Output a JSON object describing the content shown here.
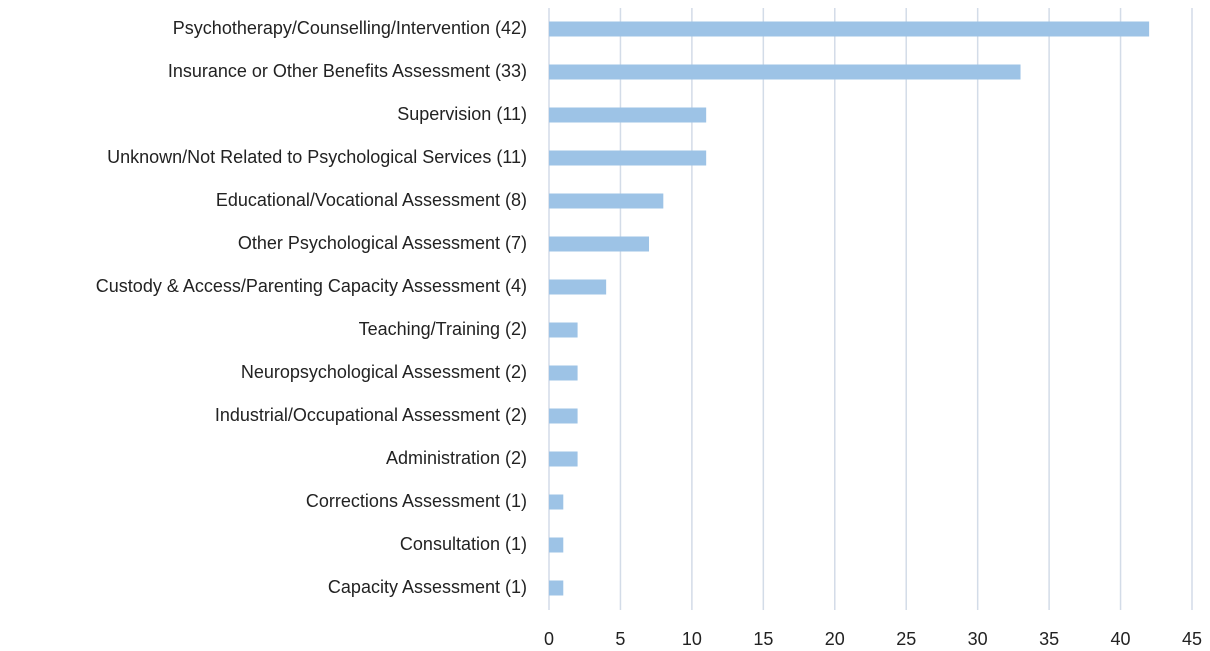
{
  "chart_data": {
    "type": "bar",
    "categories": [
      "Psychotherapy/Counselling/Intervention (42)",
      "Insurance or Other Benefits Assessment (33)",
      "Supervision (11)",
      "Unknown/Not Related to Psychological Services (11)",
      "Educational/Vocational Assessment (8)",
      "Other Psychological Assessment (7)",
      "Custody & Access/Parenting Capacity Assessment (4)",
      "Teaching/Training (2)",
      "Neuropsychological Assessment (2)",
      "Industrial/Occupational Assessment (2)",
      "Administration (2)",
      "Corrections Assessment (1)",
      "Consultation (1)",
      "Capacity Assessment (1)"
    ],
    "values": [
      42,
      33,
      11,
      11,
      8,
      7,
      4,
      2,
      2,
      2,
      2,
      1,
      1,
      1
    ],
    "color": "#9dc3e6",
    "xlim": [
      0,
      45
    ],
    "xticks": [
      0,
      5,
      10,
      15,
      20,
      25,
      30,
      35,
      40,
      45
    ],
    "grid": true
  }
}
